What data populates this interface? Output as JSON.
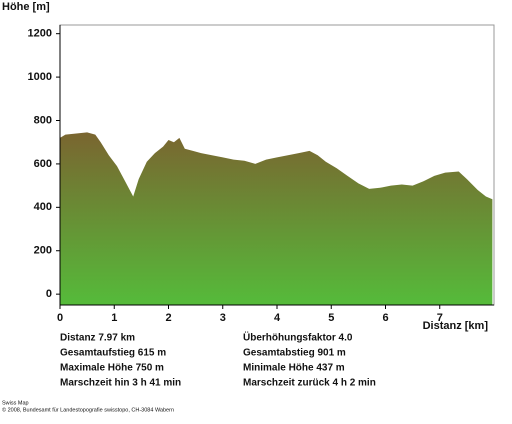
{
  "chart_data": {
    "type": "area",
    "y_label": "Höhe [m]",
    "x_label": "Distanz [km]",
    "x": [
      0,
      0.1,
      0.3,
      0.5,
      0.65,
      0.75,
      0.9,
      1.05,
      1.2,
      1.35,
      1.45,
      1.6,
      1.75,
      1.9,
      2.0,
      2.1,
      2.2,
      2.3,
      2.45,
      2.6,
      2.8,
      3.0,
      3.2,
      3.4,
      3.6,
      3.8,
      4.0,
      4.2,
      4.4,
      4.6,
      4.75,
      4.9,
      5.1,
      5.3,
      5.5,
      5.7,
      5.9,
      6.1,
      6.3,
      6.5,
      6.7,
      6.9,
      7.1,
      7.35,
      7.5,
      7.7,
      7.85,
      7.97
    ],
    "values": [
      720,
      735,
      740,
      745,
      735,
      700,
      640,
      590,
      520,
      450,
      530,
      610,
      650,
      680,
      710,
      700,
      720,
      670,
      660,
      650,
      640,
      630,
      620,
      615,
      600,
      620,
      630,
      640,
      650,
      660,
      640,
      610,
      580,
      545,
      510,
      485,
      490,
      500,
      505,
      500,
      520,
      545,
      560,
      565,
      530,
      480,
      450,
      437
    ],
    "colors": [
      "#7a6530",
      "#55bb3a"
    ],
    "xlim": [
      0,
      8
    ],
    "ylim": [
      -50,
      1240
    ],
    "xticks": [
      0,
      1,
      2,
      3,
      4,
      5,
      6,
      7
    ],
    "yticks": [
      0,
      200,
      400,
      600,
      800,
      1000,
      1200
    ]
  },
  "stats": [
    [
      "Distanz 7.97 km",
      "Überhöhungsfaktor 4.0"
    ],
    [
      "Gesamtaufstieg  615 m",
      "Gesamtabstieg  901 m"
    ],
    [
      "Maximale Höhe  750 m",
      "Minimale Höhe  437 m"
    ],
    [
      "Marschzeit hin  3 h 41 min",
      "Marschzeit zurück  4 h 2 min"
    ]
  ],
  "footer": [
    "Swiss Map",
    "© 2008, Bundesamt für Landestopografie swisstopo, CH-3084 Wabern"
  ]
}
